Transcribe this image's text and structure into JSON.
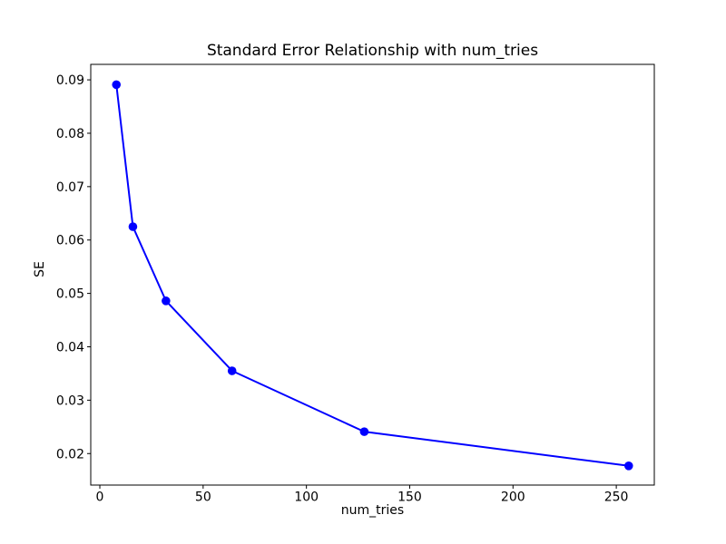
{
  "chart_data": {
    "type": "line",
    "title": "Standard Error Relationship with num_tries",
    "xlabel": "num_tries",
    "ylabel": "SE",
    "grid": false,
    "legend": null,
    "xlim": [
      -4.4,
      268.4
    ],
    "ylim": [
      0.0141,
      0.0929
    ],
    "x_ticks": [
      0,
      50,
      100,
      150,
      200,
      250
    ],
    "x_tick_labels": [
      "0",
      "50",
      "100",
      "150",
      "200",
      "250"
    ],
    "y_ticks": [
      0.02,
      0.03,
      0.04,
      0.05,
      0.06,
      0.07,
      0.08,
      0.09
    ],
    "y_tick_labels": [
      "0.02",
      "0.03",
      "0.04",
      "0.05",
      "0.06",
      "0.07",
      "0.08",
      "0.09"
    ],
    "series": [
      {
        "name": "SE",
        "x": [
          8,
          16,
          32,
          64,
          128,
          256
        ],
        "y": [
          0.0891,
          0.0625,
          0.0486,
          0.0355,
          0.0241,
          0.0177
        ],
        "color": "#0000ff",
        "marker": "circle",
        "line_width": 2,
        "marker_radius": 4.8
      }
    ],
    "colors": {
      "spine": "#000000",
      "text": "#000000",
      "background": "#ffffff"
    }
  }
}
